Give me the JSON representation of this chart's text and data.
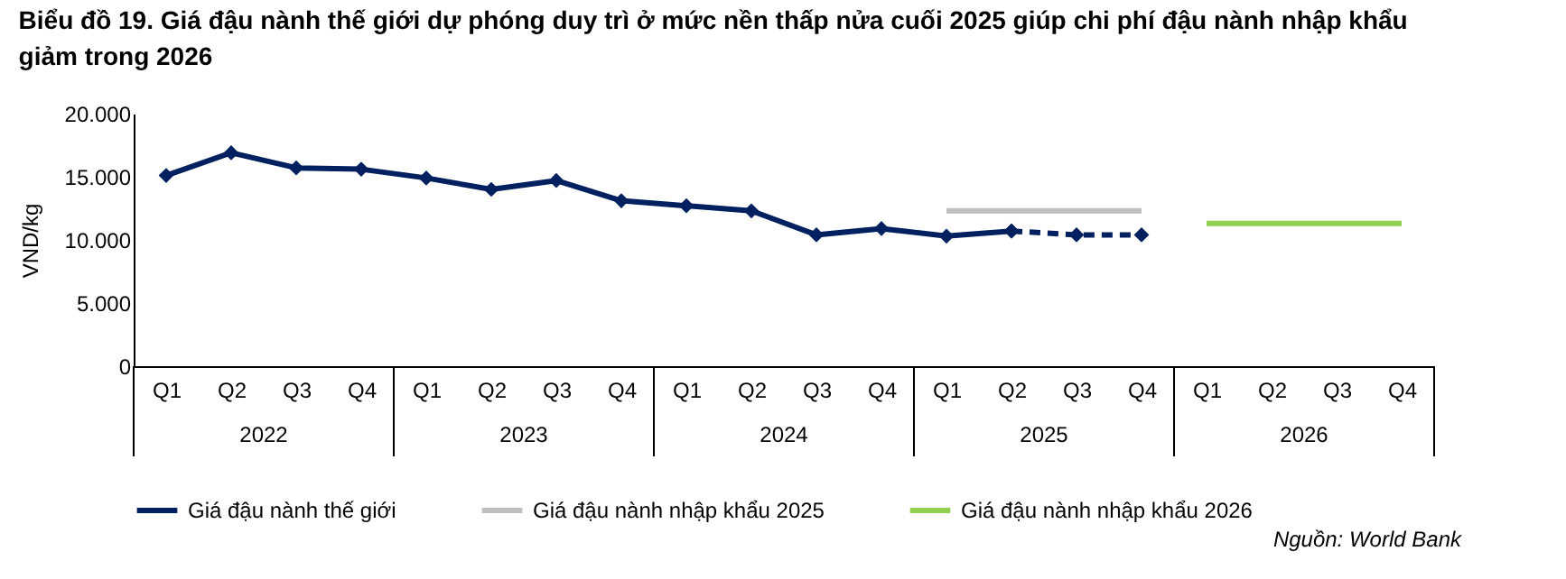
{
  "chart_data": {
    "type": "line",
    "title": "Biểu đồ 19. Giá đậu nành thế giới dự phóng duy trì ở mức nền thấp nửa cuối 2025 giúp chi phí đậu nành nhập khẩu giảm trong 2026",
    "ylabel": "VND/kg",
    "categories": [
      "Q1",
      "Q2",
      "Q3",
      "Q4",
      "Q1",
      "Q2",
      "Q3",
      "Q4",
      "Q1",
      "Q2",
      "Q3",
      "Q4",
      "Q1",
      "Q2",
      "Q3",
      "Q4",
      "Q1",
      "Q2",
      "Q3",
      "Q4"
    ],
    "annotations": [
      "2022",
      "2023",
      "2024",
      "2025",
      "2026",
      "Nguồn: World Bank"
    ],
    "ylim": [
      0,
      20000
    ],
    "yticks": [
      {
        "value": 0,
        "label": "0"
      },
      {
        "value": 5000,
        "label": "5.000"
      },
      {
        "value": 10000,
        "label": "10.000"
      },
      {
        "value": 15000,
        "label": "15.000"
      },
      {
        "value": 20000,
        "label": "20.000"
      }
    ],
    "grid": false,
    "legend": "bottom",
    "series": [
      {
        "name": "Giá đậu nành thế giới",
        "color": "#002060",
        "marker": "diamond",
        "line_style": "solid",
        "values": [
          15100,
          16900,
          15700,
          15600,
          14900,
          14000,
          14700,
          13100,
          12700,
          12300,
          10400,
          10900,
          10300,
          10700,
          null,
          null,
          null,
          null,
          null,
          null
        ]
      },
      {
        "color": "#002060",
        "marker": "diamond",
        "line_style": "dashed",
        "values": [
          null,
          null,
          null,
          null,
          null,
          null,
          null,
          null,
          null,
          null,
          null,
          null,
          null,
          10700,
          10400,
          10400,
          null,
          null,
          null,
          null
        ]
      },
      {
        "name": "Giá đậu nành nhập khẩu 2025",
        "color": "#bfbfbf",
        "marker": "none",
        "line_style": "solid",
        "values": [
          null,
          null,
          null,
          null,
          null,
          null,
          null,
          null,
          null,
          null,
          null,
          null,
          12300,
          12300,
          12300,
          12300,
          null,
          null,
          null,
          null
        ]
      },
      {
        "name": "Giá đậu nành nhập khẩu 2026",
        "color": "#92d050",
        "marker": "none",
        "line_style": "solid",
        "values": [
          null,
          null,
          null,
          null,
          null,
          null,
          null,
          null,
          null,
          null,
          null,
          null,
          null,
          null,
          null,
          null,
          11300,
          11300,
          11300,
          11300
        ]
      }
    ]
  }
}
